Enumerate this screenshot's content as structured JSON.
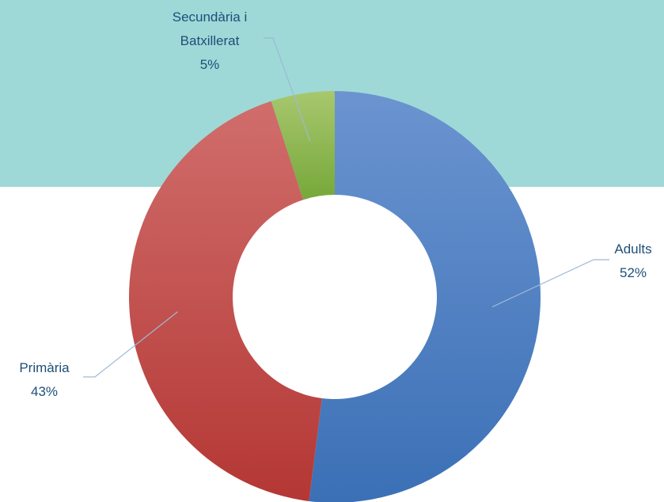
{
  "chart_data": {
    "type": "donut",
    "categories": [
      "Adults",
      "Primària",
      "Secundària i Batxillerat"
    ],
    "values": [
      52,
      43,
      5
    ],
    "value_labels": [
      "52%",
      "43%",
      "5%"
    ],
    "colors": [
      [
        "#6b94d0",
        "#3b70b6"
      ],
      [
        "#d06e6c",
        "#b43734"
      ],
      [
        "#a8c76e",
        "#76a83a"
      ]
    ]
  }
}
